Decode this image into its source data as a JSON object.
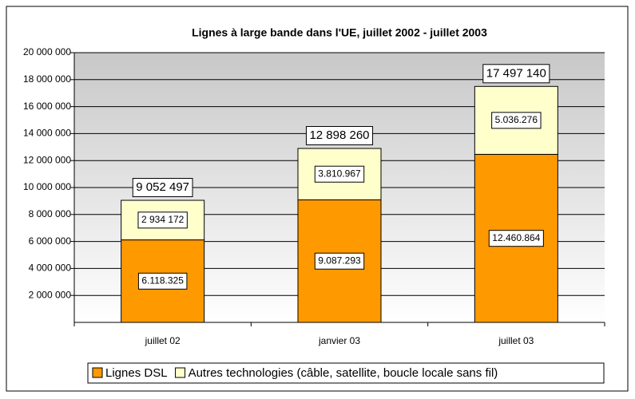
{
  "chart_data": {
    "type": "stacked_bar",
    "title": "Lignes à large bande dans l'UE, juillet 2002 - juillet 2003",
    "categories": [
      "juillet 02",
      "janvier 03",
      "juillet 03"
    ],
    "series": [
      {
        "name": "Lignes DSL",
        "color": "#ff9900",
        "values": [
          6118325,
          9087293,
          12460864
        ],
        "value_labels": [
          "6.118.325",
          "9.087.293",
          "12.460.864"
        ]
      },
      {
        "name": "Autres technologies (câble, satellite, boucle locale sans fil)",
        "color": "#ffffcc",
        "values": [
          2934172,
          3810967,
          5036276
        ],
        "value_labels": [
          "2 934 172",
          "3.810.967",
          "5.036.276"
        ]
      }
    ],
    "totals": [
      9052497,
      12898260,
      17497140
    ],
    "total_labels": [
      "9 052 497",
      "12 898 260",
      "17 497 140"
    ],
    "ylim": [
      0,
      20000000
    ],
    "yticks": [
      {
        "value": 2000000,
        "label": "2 000 000"
      },
      {
        "value": 4000000,
        "label": "4 000 000"
      },
      {
        "value": 6000000,
        "label": "6 000 000"
      },
      {
        "value": 8000000,
        "label": "8 000 000"
      },
      {
        "value": 10000000,
        "label": "10 000 000"
      },
      {
        "value": 12000000,
        "label": "12 000 000"
      },
      {
        "value": 14000000,
        "label": "14 000 000"
      },
      {
        "value": 16000000,
        "label": "16 000 000"
      },
      {
        "value": 18000000,
        "label": "18 000 000"
      },
      {
        "value": 20000000,
        "label": "20 000 000"
      }
    ],
    "grid": true,
    "legend": "bottom"
  }
}
